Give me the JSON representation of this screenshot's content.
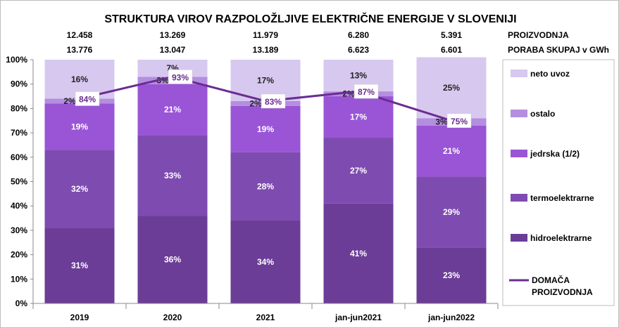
{
  "chart_data": {
    "type": "bar",
    "stacked": true,
    "percent_stacked": true,
    "title": "STRUKTURA VIROV RAZPOLOŽLJIVE ELEKTRIČNE ENERGIJE V SLOVENIJI",
    "categories": [
      "2019",
      "2020",
      "2021",
      "jan-jun2021",
      "jan-jun2022"
    ],
    "header_rows": [
      {
        "label": "PROIZVODNJA",
        "values": [
          "12.458",
          "13.269",
          "11.979",
          "6.280",
          "5.391"
        ]
      },
      {
        "label": "PORABA SKUPAJ v GWh",
        "values": [
          "13.776",
          "13.047",
          "13.189",
          "6.623",
          "6.601"
        ]
      }
    ],
    "series": [
      {
        "name": "hidroelektrarne",
        "values": [
          31,
          36,
          34,
          41,
          23
        ],
        "labels": [
          "31%",
          "36%",
          "34%",
          "41%",
          "23%"
        ],
        "color": "#6b3d97"
      },
      {
        "name": "termoelektrarne",
        "values": [
          32,
          33,
          28,
          27,
          29
        ],
        "labels": [
          "32%",
          "33%",
          "28%",
          "27%",
          "29%"
        ],
        "color": "#7e4bb0"
      },
      {
        "name": "jedrska (1/2)",
        "values": [
          19,
          21,
          19,
          17,
          21
        ],
        "labels": [
          "19%",
          "21%",
          "19%",
          "17%",
          "21%"
        ],
        "color": "#9a55d6"
      },
      {
        "name": "ostalo",
        "values": [
          2,
          3,
          2,
          2,
          3
        ],
        "labels": [
          "2%",
          "3%",
          "2%",
          "2%",
          "3%"
        ],
        "color": "#b48ee0"
      },
      {
        "name": "neto uvoz",
        "values": [
          16,
          7,
          17,
          13,
          25
        ],
        "labels": [
          "16%",
          "7%",
          "17%",
          "13%",
          "25%"
        ],
        "color": "#d7c8ef"
      }
    ],
    "line_series": {
      "name": "DOMAČA PROIZVODNJA",
      "values": [
        84,
        93,
        83,
        87,
        75
      ],
      "labels": [
        "84%",
        "93%",
        "83%",
        "87%",
        "75%"
      ],
      "color": "#6a2c91"
    },
    "y_ticks": [
      "0%",
      "10%",
      "20%",
      "30%",
      "40%",
      "50%",
      "60%",
      "70%",
      "80%",
      "90%",
      "100%"
    ],
    "ylim": [
      0,
      100
    ],
    "xlabel": "",
    "ylabel": "",
    "legend_position": "right",
    "grid": false
  }
}
